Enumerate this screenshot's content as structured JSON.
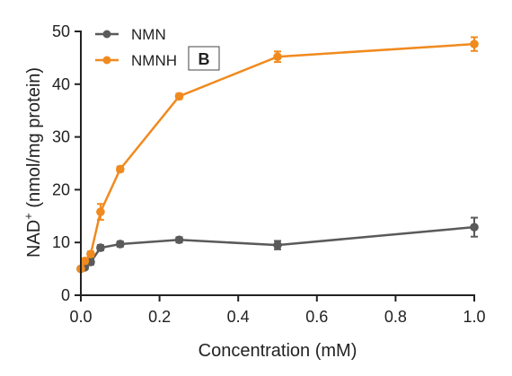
{
  "colors": {
    "nmn": "#5a5a5a",
    "nmnh": "#f08a1e",
    "axis": "#222222"
  },
  "panel_label": "B",
  "chart_data": {
    "type": "line",
    "xlabel": "Concentration (mM)",
    "ylabel_main": "NAD",
    "ylabel_sup": "+",
    "ylabel_rest": " (nmol/mg protein)",
    "xlim": [
      0,
      1.0
    ],
    "ylim": [
      0,
      50
    ],
    "xticks": [
      0.0,
      0.2,
      0.4,
      0.6,
      0.8,
      1.0
    ],
    "xtick_labels": [
      "0.0",
      "0.2",
      "0.4",
      "0.6",
      "0.8",
      "1.0"
    ],
    "yticks": [
      0,
      10,
      20,
      30,
      40,
      50
    ],
    "ytick_labels": [
      "0",
      "10",
      "20",
      "30",
      "40",
      "50"
    ],
    "legend_position": "top-left",
    "grid": false,
    "series": [
      {
        "name": "NMN",
        "color": "#5a5a5a",
        "x": [
          0.0,
          0.01,
          0.025,
          0.05,
          0.1,
          0.25,
          0.5,
          1.0
        ],
        "y": [
          5.0,
          5.3,
          6.3,
          9.0,
          9.7,
          10.5,
          9.5,
          12.9
        ],
        "err": [
          0.4,
          0.4,
          0.5,
          0.5,
          0.5,
          0.5,
          0.8,
          1.8
        ]
      },
      {
        "name": "NMNH",
        "color": "#f08a1e",
        "x": [
          0.0,
          0.01,
          0.025,
          0.05,
          0.1,
          0.25,
          0.5,
          1.0
        ],
        "y": [
          5.0,
          6.5,
          7.8,
          15.8,
          23.9,
          37.7,
          45.2,
          47.6
        ],
        "err": [
          0.4,
          0.5,
          0.5,
          1.5,
          0.5,
          0.5,
          1.0,
          1.3
        ]
      }
    ]
  }
}
